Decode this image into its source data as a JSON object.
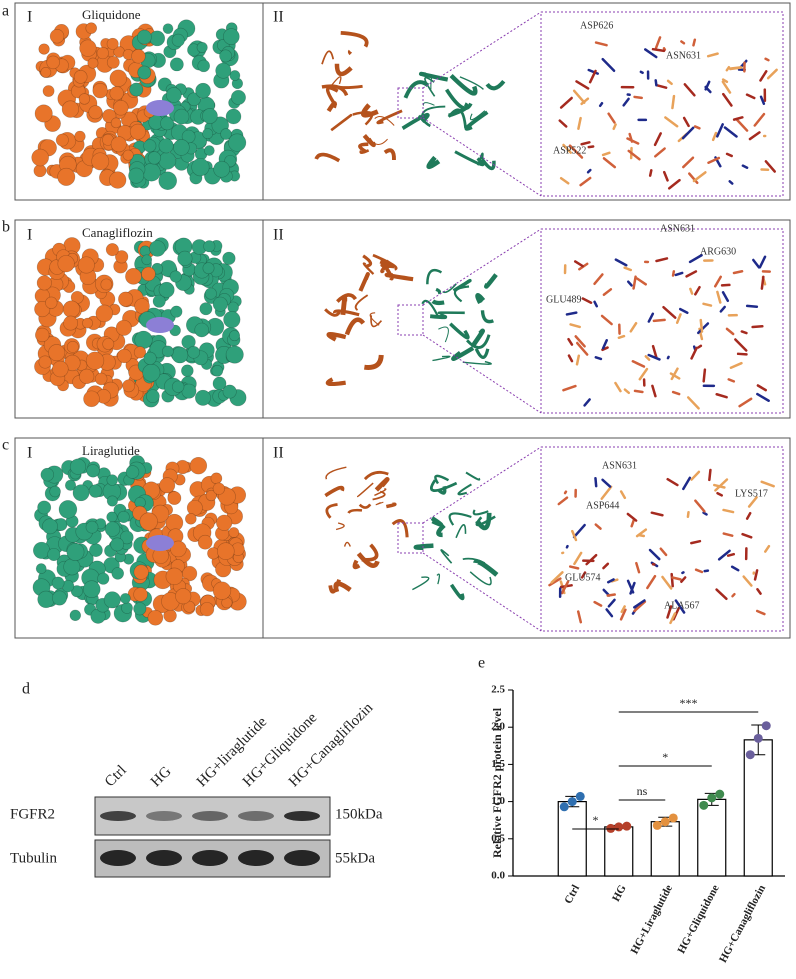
{
  "panels": [
    {
      "letter": "a",
      "part1": "I",
      "compound": "Gliquidone",
      "part2": "II",
      "residues": [
        "ASP626",
        "ASN631",
        "ASP522"
      ]
    },
    {
      "letter": "b",
      "part1": "I",
      "compound": "Canagliflozin",
      "part2": "II",
      "residues": [
        "ASN631",
        "ARG630",
        "GLU489"
      ]
    },
    {
      "letter": "c",
      "part1": "I",
      "compound": "Liraglutide",
      "part2": "II",
      "residues": [
        "ASN631",
        "LYS517",
        "ASP644",
        "GLU574",
        "ALA567"
      ]
    }
  ],
  "blot": {
    "letter": "d",
    "lanes": [
      "Ctrl",
      "HG",
      "HG+liraglutide",
      "HG+Gliquidone",
      "HG+Canagliflozin"
    ],
    "rows": [
      {
        "protein": "FGFR2",
        "size": "150kDa"
      },
      {
        "protein": "Tubulin",
        "size": "55kDa"
      }
    ]
  },
  "chart_data": {
    "type": "bar",
    "letter": "e",
    "ylabel": "Relative FGFR2 protein level",
    "categories": [
      "Ctrl",
      "HG",
      "HG+Liraglutide",
      "HG+Gliquidone",
      "HG+Canagliflozin"
    ],
    "values": [
      1.0,
      0.66,
      0.73,
      1.03,
      1.83
    ],
    "errors": [
      0.07,
      0.02,
      0.06,
      0.08,
      0.2
    ],
    "points": [
      [
        0.93,
        1.0,
        1.07
      ],
      [
        0.64,
        0.66,
        0.67
      ],
      [
        0.68,
        0.73,
        0.78
      ],
      [
        0.95,
        1.05,
        1.1
      ],
      [
        1.63,
        1.85,
        2.02
      ]
    ],
    "colors": [
      "#2f6fb0",
      "#b5402a",
      "#e3913f",
      "#3f8a4e",
      "#6a5f9c"
    ],
    "ylim": [
      0,
      2.5
    ],
    "yticks": [
      {
        "value": 0,
        "label": "0.0"
      },
      0.5,
      {
        "value": 1,
        "label": "1.0"
      },
      1.5,
      {
        "value": 2,
        "label": "2.0"
      },
      2.5
    ],
    "comparisons": [
      {
        "label": "*",
        "groups": [
          "Ctrl",
          "HG"
        ]
      },
      {
        "label": "ns",
        "groups": [
          "HG",
          "HG+Liraglutide"
        ]
      },
      {
        "label": "*",
        "groups": [
          "HG",
          "HG+Gliquidone"
        ]
      },
      {
        "label": "***",
        "groups": [
          "HG",
          "HG+Canagliflozin"
        ]
      }
    ]
  }
}
